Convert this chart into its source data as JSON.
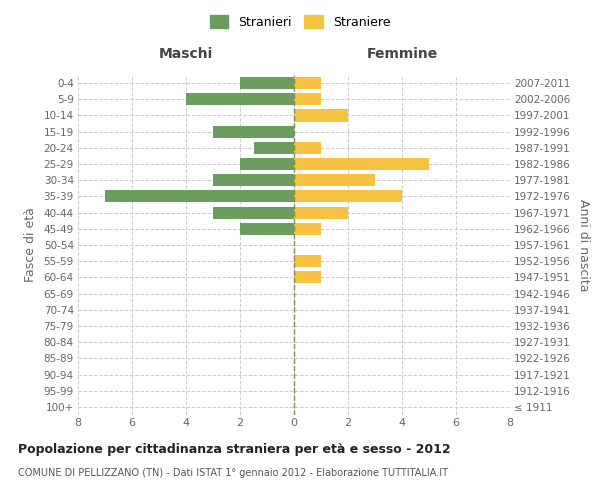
{
  "age_groups": [
    "100+",
    "95-99",
    "90-94",
    "85-89",
    "80-84",
    "75-79",
    "70-74",
    "65-69",
    "60-64",
    "55-59",
    "50-54",
    "45-49",
    "40-44",
    "35-39",
    "30-34",
    "25-29",
    "20-24",
    "15-19",
    "10-14",
    "5-9",
    "0-4"
  ],
  "birth_years": [
    "≤ 1911",
    "1912-1916",
    "1917-1921",
    "1922-1926",
    "1927-1931",
    "1932-1936",
    "1937-1941",
    "1942-1946",
    "1947-1951",
    "1952-1956",
    "1957-1961",
    "1962-1966",
    "1967-1971",
    "1972-1976",
    "1977-1981",
    "1982-1986",
    "1987-1991",
    "1992-1996",
    "1997-2001",
    "2002-2006",
    "2007-2011"
  ],
  "maschi": [
    0,
    0,
    0,
    0,
    0,
    0,
    0,
    0,
    0,
    0,
    0,
    2,
    3,
    7,
    3,
    2,
    1.5,
    3,
    0,
    4,
    2
  ],
  "femmine": [
    0,
    0,
    0,
    0,
    0,
    0,
    0,
    0,
    1,
    1,
    0,
    1,
    2,
    4,
    3,
    5,
    1,
    0,
    2,
    1,
    1
  ],
  "maschi_color": "#6b9e5e",
  "femmine_color": "#f5c242",
  "bg_color": "#ffffff",
  "grid_color": "#cccccc",
  "title": "Popolazione per cittadinanza straniera per età e sesso - 2012",
  "subtitle": "COMUNE DI PELLIZZANO (TN) - Dati ISTAT 1° gennaio 2012 - Elaborazione TUTTITALIA.IT",
  "ylabel_left": "Fasce di età",
  "ylabel_right": "Anni di nascita",
  "xlabel_maschi": "Maschi",
  "xlabel_femmine": "Femmine",
  "legend_maschi": "Stranieri",
  "legend_femmine": "Straniere",
  "xlim": 8,
  "xticks": [
    -8,
    -6,
    -4,
    -2,
    0,
    2,
    4,
    6,
    8
  ]
}
